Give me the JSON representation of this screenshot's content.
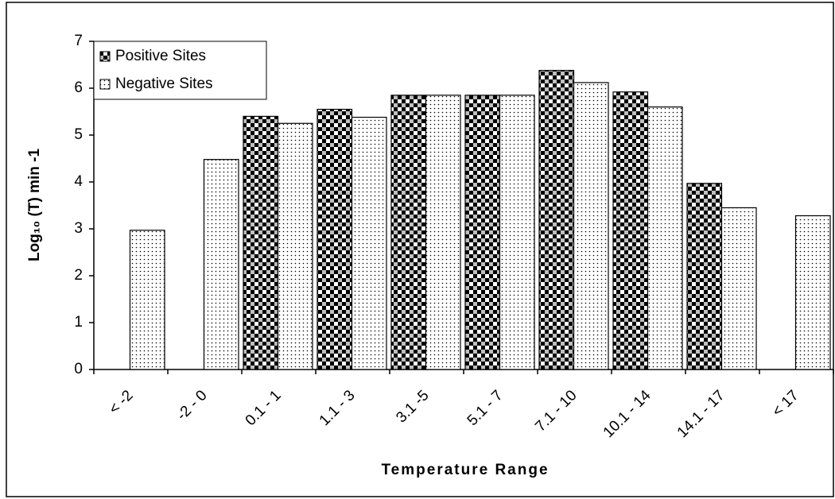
{
  "chart_data": {
    "type": "bar",
    "x_label": "Temperature Range",
    "y_label": "Log₁₀ (T) min -1",
    "categories": [
      "< -2",
      "-2 - 0",
      "0.1 - 1",
      "1.1 - 3",
      "3.1 -5",
      "5.1 - 7",
      "7.1 - 10",
      "10.1 - 14",
      "14.1 - 17",
      "< 17"
    ],
    "series": [
      {
        "name": "Positive Sites",
        "color": "#000000",
        "values": [
          null,
          null,
          5.4,
          5.55,
          5.85,
          5.85,
          6.38,
          5.92,
          3.97,
          null
        ]
      },
      {
        "name": "Negative Sites",
        "color": "#000000",
        "values": [
          2.97,
          4.48,
          5.25,
          5.38,
          5.85,
          5.85,
          6.12,
          5.6,
          3.45,
          3.28
        ]
      }
    ],
    "ylim": [
      0,
      7
    ],
    "yticks": [
      0,
      1,
      2,
      3,
      4,
      5,
      6,
      7
    ],
    "grid": false,
    "legend": "top-left"
  }
}
